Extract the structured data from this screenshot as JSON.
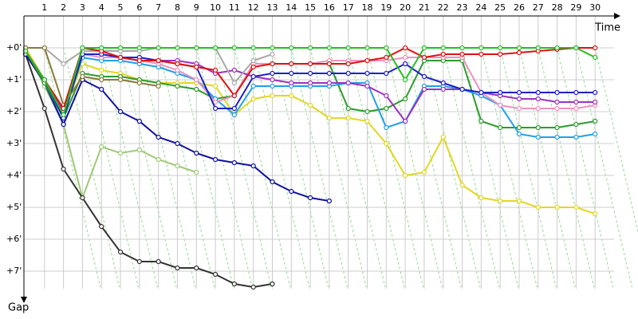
{
  "chart_data": {
    "type": "line",
    "x_label": "Time",
    "y_label": "Gap",
    "x": [
      0,
      1,
      2,
      3,
      4,
      5,
      6,
      7,
      8,
      9,
      10,
      11,
      12,
      13,
      14,
      15,
      16,
      17,
      18,
      19,
      20,
      21,
      22,
      23,
      24,
      25,
      26,
      27,
      28,
      29,
      30
    ],
    "xlim": [
      0,
      31
    ],
    "xticks": [
      1,
      2,
      3,
      4,
      5,
      6,
      7,
      8,
      9,
      10,
      11,
      12,
      13,
      14,
      15,
      16,
      17,
      18,
      19,
      20,
      21,
      22,
      23,
      24,
      25,
      26,
      27,
      28,
      29,
      30
    ],
    "ylim": [
      -1,
      7.9
    ],
    "y_inverted": true,
    "yticks": [
      {
        "value": 0,
        "label": "+0'"
      },
      {
        "value": 1,
        "label": "+1'"
      },
      {
        "value": 2,
        "label": "+2'"
      },
      {
        "value": 3,
        "label": "+3'"
      },
      {
        "value": 4,
        "label": "+4'"
      },
      {
        "value": 5,
        "label": "+5'"
      },
      {
        "value": 6,
        "label": "+6'"
      },
      {
        "value": 7,
        "label": "+7'"
      }
    ],
    "grid": true,
    "series": [
      {
        "color": "#a0c878",
        "values": [
          0,
          1.2,
          2.4,
          4.7,
          3.1,
          3.3,
          3.2,
          3.5,
          3.7,
          3.9,
          null,
          null,
          null,
          null,
          null,
          null,
          null,
          null,
          null,
          null,
          null,
          null,
          null,
          null,
          null,
          null,
          null,
          null,
          null,
          null,
          null
        ]
      },
      {
        "color": "#333333",
        "values": [
          0.2,
          1.9,
          3.8,
          4.7,
          5.6,
          6.4,
          6.7,
          6.7,
          6.9,
          6.9,
          7.1,
          7.4,
          7.5,
          7.4,
          null,
          null,
          null,
          null,
          null,
          null,
          null,
          null,
          null,
          null,
          null,
          null,
          null,
          null,
          null,
          null,
          null
        ]
      },
      {
        "color": "#1010a0",
        "values": [
          0.2,
          1.1,
          2.4,
          1.0,
          1.3,
          2.0,
          2.3,
          2.8,
          3.0,
          3.3,
          3.5,
          3.6,
          3.7,
          4.2,
          4.5,
          4.7,
          4.8,
          null,
          null,
          null,
          null,
          null,
          null,
          null,
          null,
          null,
          null,
          null,
          null,
          null,
          null
        ]
      },
      {
        "color": "#e0d820",
        "values": [
          0,
          1.0,
          2.0,
          0.5,
          0.7,
          0.8,
          1.0,
          1.1,
          1.1,
          1.1,
          1.2,
          2.1,
          1.6,
          1.5,
          1.5,
          1.8,
          2.2,
          2.2,
          2.3,
          3.0,
          4.0,
          3.9,
          2.8,
          4.3,
          4.7,
          4.8,
          4.8,
          5.0,
          5.0,
          5.0,
          5.2
        ]
      },
      {
        "color": "#2e9a2e",
        "values": [
          0.1,
          1.1,
          2.2,
          0.8,
          0.9,
          0.9,
          1.0,
          1.1,
          1.2,
          1.3,
          1.6,
          1.5,
          0.5,
          0.5,
          0.5,
          0.5,
          0.5,
          1.9,
          2.0,
          1.9,
          1.6,
          0.4,
          0.4,
          0.4,
          2.3,
          2.5,
          2.5,
          2.5,
          2.5,
          2.4,
          2.3
        ]
      },
      {
        "color": "#20a0e8",
        "values": [
          0.1,
          1.0,
          2.1,
          0.3,
          0.4,
          0.4,
          0.5,
          0.6,
          0.8,
          1.0,
          1.6,
          2.1,
          1.2,
          1.2,
          1.2,
          1.2,
          1.2,
          1.1,
          1.1,
          2.5,
          2.3,
          1.2,
          1.2,
          1.3,
          1.5,
          1.8,
          2.7,
          2.8,
          2.8,
          2.8,
          2.7
        ]
      },
      {
        "color": "#f090c0",
        "values": [
          0.1,
          1.0,
          2.0,
          0.2,
          0.3,
          0.3,
          0.4,
          0.5,
          0.7,
          1.0,
          1.7,
          1.5,
          0.5,
          0.5,
          0.5,
          0.5,
          0.4,
          0.4,
          0.4,
          0.4,
          0.3,
          0.3,
          0.3,
          0.3,
          1.4,
          1.8,
          1.9,
          1.9,
          1.9,
          1.9,
          1.8
        ]
      },
      {
        "color": "#a030c0",
        "values": [
          0.1,
          1.0,
          2.0,
          0.2,
          0.2,
          0.3,
          0.3,
          0.4,
          0.4,
          0.5,
          0.8,
          0.7,
          0.9,
          1.0,
          1.1,
          1.1,
          1.1,
          1.1,
          1.2,
          1.5,
          2.3,
          1.3,
          1.3,
          1.3,
          1.4,
          1.5,
          1.6,
          1.6,
          1.7,
          1.7,
          1.7
        ]
      },
      {
        "color": "#2020c8",
        "values": [
          0.1,
          1.0,
          2.2,
          0.2,
          0.2,
          0.3,
          0.3,
          0.4,
          0.5,
          0.6,
          1.9,
          1.9,
          0.9,
          0.8,
          0.8,
          0.8,
          0.8,
          0.8,
          0.8,
          0.8,
          0.5,
          0.9,
          1.1,
          1.3,
          1.4,
          1.4,
          1.4,
          1.4,
          1.4,
          1.4,
          1.4
        ]
      },
      {
        "color": "#a8a8a8",
        "values": [
          0.0,
          0.0,
          0.5,
          0.1,
          0.1,
          0.1,
          0.1,
          0.0,
          0.0,
          0.0,
          0.0,
          1.1,
          0.4,
          0.2,
          null,
          null,
          null,
          null,
          null,
          null,
          null,
          null,
          null,
          null,
          null,
          null,
          null,
          null,
          null,
          null,
          null
        ]
      },
      {
        "color": "#8a7a3a",
        "values": [
          0.0,
          0.0,
          1.8,
          0.9,
          1.0,
          1.0,
          1.1,
          1.2,
          null,
          null,
          null,
          null,
          null,
          null,
          null,
          null,
          null,
          null,
          null,
          null,
          null,
          null,
          null,
          null,
          null,
          null,
          null,
          null,
          null,
          null,
          null
        ]
      },
      {
        "color": "#e01010",
        "values": [
          0.1,
          1.0,
          1.9,
          0.0,
          0.1,
          0.3,
          0.4,
          0.4,
          0.5,
          0.6,
          0.7,
          1.5,
          0.6,
          0.5,
          0.5,
          0.5,
          0.5,
          0.5,
          0.4,
          0.3,
          0.0,
          0.3,
          0.2,
          0.2,
          0.2,
          0.2,
          0.15,
          0.1,
          0.05,
          0.0,
          0.0
        ]
      },
      {
        "color": "#20c020",
        "values": [
          0.1,
          1.0,
          2.1,
          0,
          0,
          0,
          0,
          0,
          0,
          0,
          0,
          0,
          0,
          0,
          0,
          0,
          0,
          0,
          0,
          0,
          1.0,
          0,
          0,
          0,
          0,
          0,
          0,
          0,
          0,
          0,
          0.3
        ]
      }
    ]
  }
}
